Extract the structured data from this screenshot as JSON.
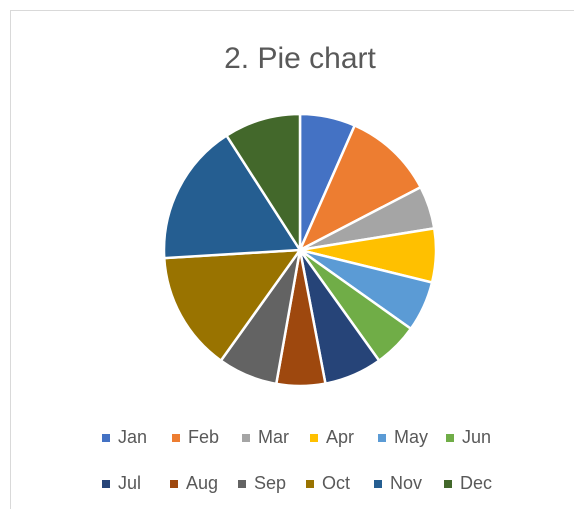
{
  "chart_data": {
    "type": "pie",
    "title": "2. Pie chart",
    "categories": [
      "Jan",
      "Feb",
      "Mar",
      "Apr",
      "May",
      "Jun",
      "Jul",
      "Aug",
      "Sep",
      "Oct",
      "Nov",
      "Dec"
    ],
    "values": [
      6.6,
      10.8,
      5.1,
      6.4,
      6.0,
      5.3,
      6.9,
      5.8,
      7.1,
      14.2,
      16.9,
      9.1
    ],
    "colors": [
      "#4472c4",
      "#ed7d31",
      "#a5a5a5",
      "#ffc000",
      "#5b9bd5",
      "#70ad47",
      "#264478",
      "#9e480e",
      "#636363",
      "#997300",
      "#255e91",
      "#43682b"
    ],
    "legend": "bottom"
  }
}
